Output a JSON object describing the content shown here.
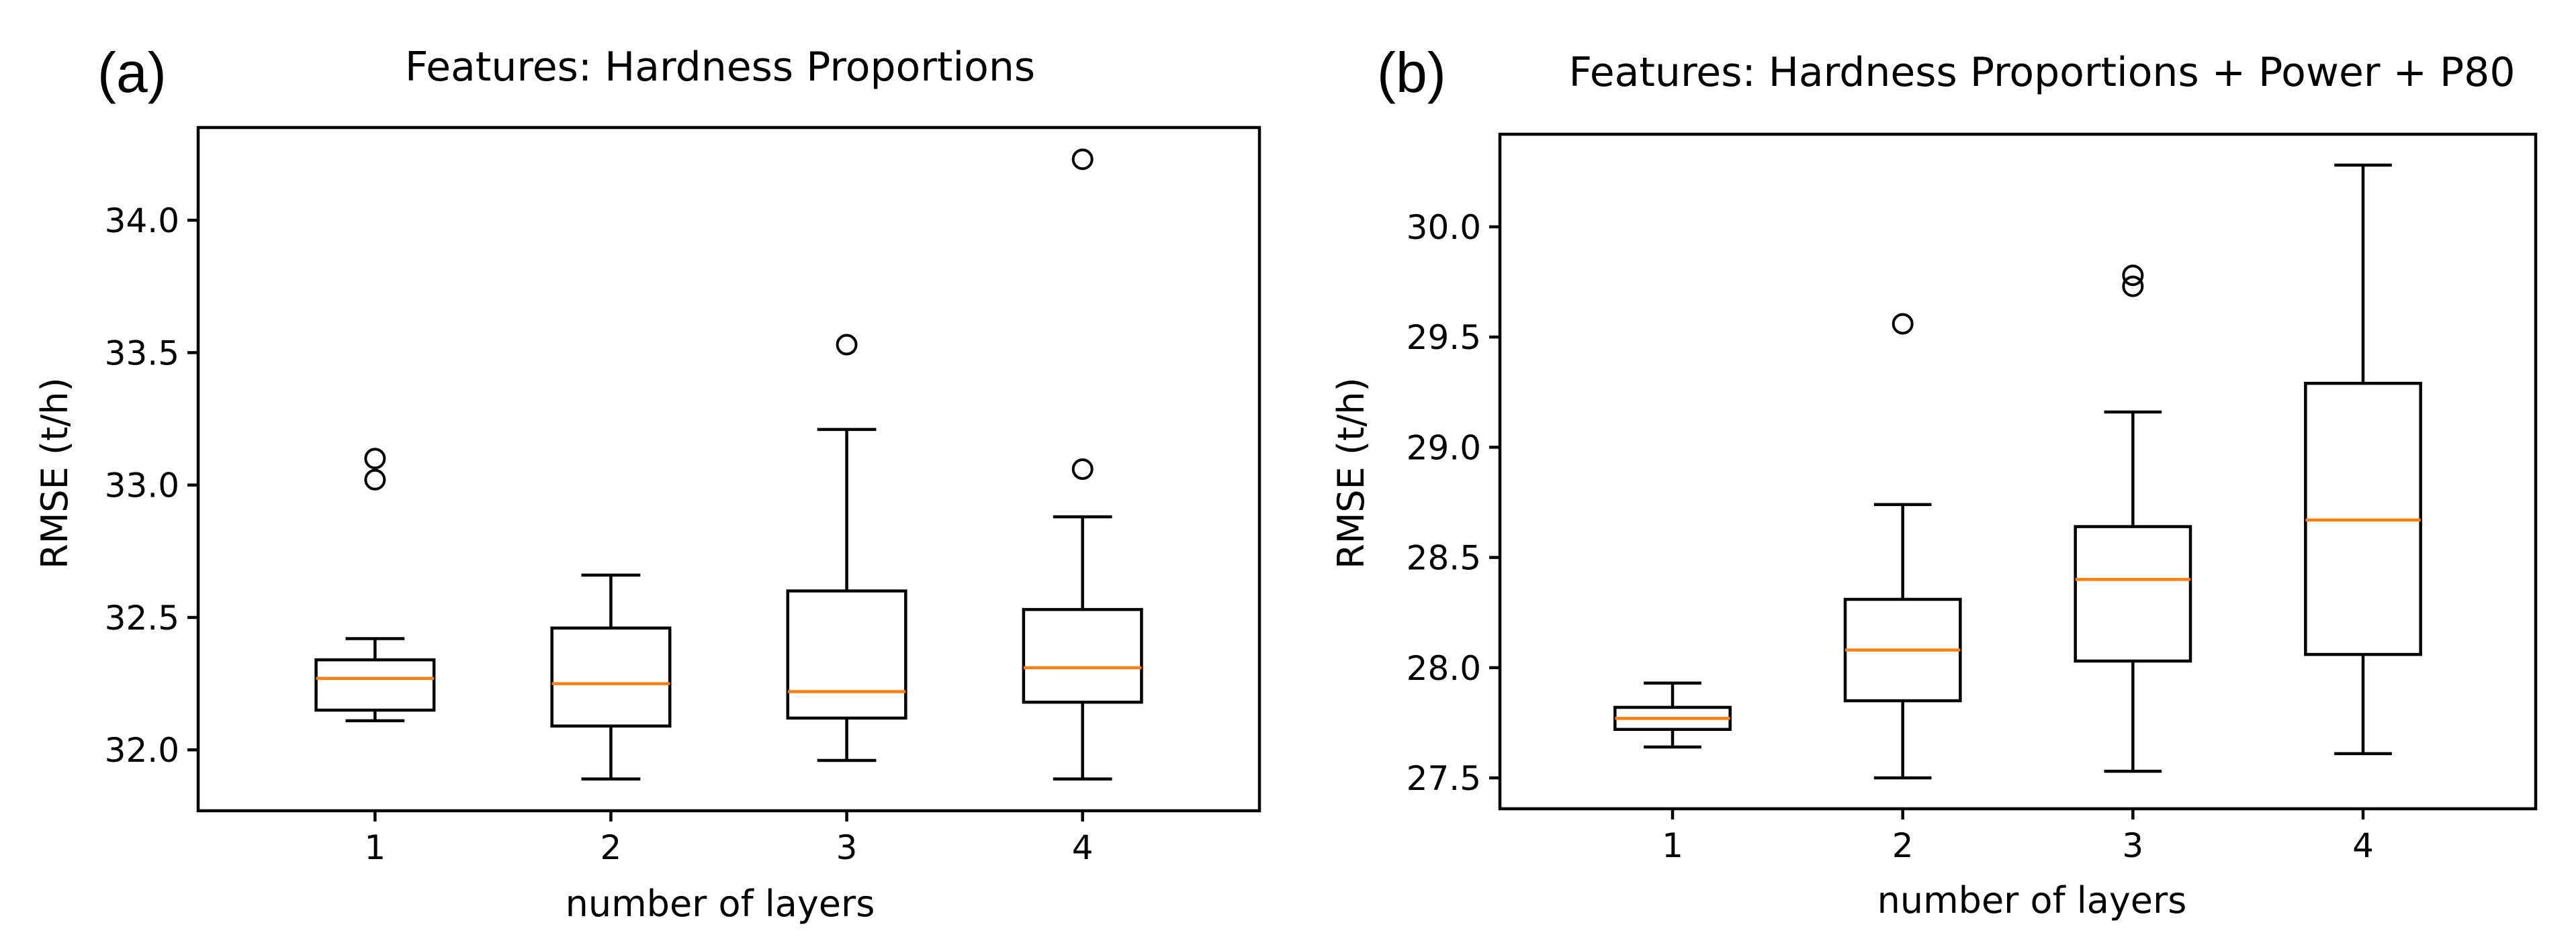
{
  "chart_data": [
    {
      "type": "box",
      "panel_label": "(a)",
      "title": "Features: Hardness Proportions",
      "xlabel": "number of layers",
      "ylabel": "RMSE (t/h)",
      "categories": [
        "1",
        "2",
        "3",
        "4"
      ],
      "ylim": [
        31.77,
        34.35
      ],
      "yticks": [
        32.0,
        32.5,
        33.0,
        33.5,
        34.0
      ],
      "ytick_labels": [
        "32.0",
        "32.5",
        "33.0",
        "33.5",
        "34.0"
      ],
      "boxes": [
        {
          "whisker_low": 32.11,
          "q1": 32.15,
          "median": 32.27,
          "q3": 32.34,
          "whisker_high": 32.42,
          "fliers": [
            33.02,
            33.1
          ]
        },
        {
          "whisker_low": 31.89,
          "q1": 32.09,
          "median": 32.25,
          "q3": 32.46,
          "whisker_high": 32.66,
          "fliers": []
        },
        {
          "whisker_low": 31.96,
          "q1": 32.12,
          "median": 32.22,
          "q3": 32.6,
          "whisker_high": 33.21,
          "fliers": [
            33.53
          ]
        },
        {
          "whisker_low": 31.89,
          "q1": 32.18,
          "median": 32.31,
          "q3": 32.53,
          "whisker_high": 32.88,
          "fliers": [
            33.06,
            34.23
          ]
        }
      ],
      "colors": {
        "box": "#000000",
        "median": "#ff7f0e"
      }
    },
    {
      "type": "box",
      "panel_label": "(b)",
      "title": "Features: Hardness Proportions + Power + P80",
      "xlabel": "number of layers",
      "ylabel": "RMSE (t/h)",
      "categories": [
        "1",
        "2",
        "3",
        "4"
      ],
      "ylim": [
        27.36,
        30.42
      ],
      "yticks": [
        27.5,
        28.0,
        28.5,
        29.0,
        29.5,
        30.0
      ],
      "ytick_labels": [
        "27.5",
        "28.0",
        "28.5",
        "29.0",
        "29.5",
        "30.0"
      ],
      "boxes": [
        {
          "whisker_low": 27.64,
          "q1": 27.72,
          "median": 27.77,
          "q3": 27.82,
          "whisker_high": 27.93,
          "fliers": []
        },
        {
          "whisker_low": 27.5,
          "q1": 27.85,
          "median": 28.08,
          "q3": 28.31,
          "whisker_high": 28.74,
          "fliers": [
            29.56
          ]
        },
        {
          "whisker_low": 27.53,
          "q1": 28.03,
          "median": 28.4,
          "q3": 28.64,
          "whisker_high": 29.16,
          "fliers": [
            29.73,
            29.78
          ]
        },
        {
          "whisker_low": 27.61,
          "q1": 28.06,
          "median": 28.67,
          "q3": 29.29,
          "whisker_high": 30.28,
          "fliers": []
        }
      ],
      "colors": {
        "box": "#000000",
        "median": "#ff7f0e"
      }
    }
  ]
}
